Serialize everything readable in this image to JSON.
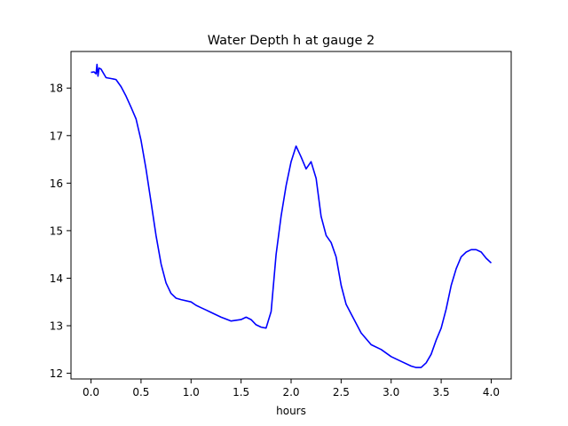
{
  "chart_data": {
    "type": "line",
    "title": "Water Depth h at gauge 2",
    "xlabel": "hours",
    "ylabel": "",
    "xlim": [
      -0.2,
      4.2
    ],
    "ylim": [
      11.88,
      18.77
    ],
    "xticks": [
      0.0,
      0.5,
      1.0,
      1.5,
      2.0,
      2.5,
      3.0,
      3.5,
      4.0
    ],
    "xtick_labels": [
      "0.0",
      "0.5",
      "1.0",
      "1.5",
      "2.0",
      "2.5",
      "3.0",
      "3.5",
      "4.0"
    ],
    "yticks": [
      12,
      13,
      14,
      15,
      16,
      17,
      18
    ],
    "ytick_labels": [
      "12",
      "13",
      "14",
      "15",
      "16",
      "17",
      "18"
    ],
    "grid": false,
    "series": [
      {
        "color": "#0000ff",
        "x": [
          0.0,
          0.03,
          0.05,
          0.06,
          0.07,
          0.08,
          0.1,
          0.15,
          0.2,
          0.25,
          0.3,
          0.35,
          0.4,
          0.45,
          0.5,
          0.55,
          0.6,
          0.65,
          0.7,
          0.75,
          0.8,
          0.85,
          0.9,
          1.0,
          1.05,
          1.1,
          1.15,
          1.2,
          1.3,
          1.4,
          1.5,
          1.55,
          1.6,
          1.65,
          1.7,
          1.75,
          1.8,
          1.85,
          1.9,
          1.95,
          2.0,
          2.05,
          2.1,
          2.15,
          2.2,
          2.25,
          2.3,
          2.35,
          2.4,
          2.45,
          2.5,
          2.55,
          2.6,
          2.7,
          2.8,
          2.9,
          3.0,
          3.1,
          3.2,
          3.25,
          3.3,
          3.35,
          3.4,
          3.45,
          3.5,
          3.55,
          3.6,
          3.65,
          3.7,
          3.75,
          3.8,
          3.85,
          3.9,
          3.95,
          4.0
        ],
        "y": [
          18.33,
          18.34,
          18.3,
          18.5,
          18.25,
          18.42,
          18.4,
          18.22,
          18.2,
          18.18,
          18.03,
          17.83,
          17.6,
          17.35,
          16.9,
          16.3,
          15.6,
          14.9,
          14.3,
          13.9,
          13.68,
          13.58,
          13.55,
          13.5,
          13.43,
          13.38,
          13.33,
          13.28,
          13.18,
          13.1,
          13.13,
          13.18,
          13.13,
          13.02,
          12.97,
          12.95,
          13.3,
          14.5,
          15.3,
          15.95,
          16.45,
          16.78,
          16.55,
          16.3,
          16.45,
          16.1,
          15.3,
          14.9,
          14.75,
          14.45,
          13.85,
          13.45,
          13.25,
          12.85,
          12.6,
          12.5,
          12.35,
          12.25,
          12.15,
          12.12,
          12.12,
          12.22,
          12.4,
          12.7,
          12.95,
          13.35,
          13.85,
          14.2,
          14.45,
          14.55,
          14.6,
          14.6,
          14.55,
          14.42,
          14.32
        ]
      }
    ]
  }
}
